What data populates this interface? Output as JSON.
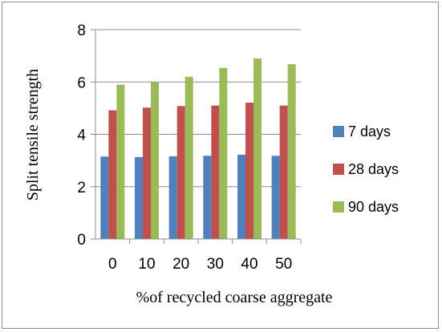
{
  "chart_data": {
    "type": "bar",
    "title": "",
    "xlabel": "%of recycled coarse aggregate",
    "ylabel": "Split tensile strength",
    "categories": [
      "0",
      "10",
      "20",
      "30",
      "40",
      "50"
    ],
    "ylim": [
      0,
      8
    ],
    "yticks": [
      "0",
      "2",
      "4",
      "6",
      "8"
    ],
    "grid": true,
    "legend_position": "right",
    "series": [
      {
        "name": "7 days",
        "color": "#4f81bd",
        "values": [
          3.15,
          3.13,
          3.16,
          3.18,
          3.22,
          3.18
        ]
      },
      {
        "name": "28 days",
        "color": "#c0504d",
        "values": [
          4.92,
          5.02,
          5.08,
          5.1,
          5.21,
          5.1
        ]
      },
      {
        "name": "90 days",
        "color": "#9bbb59",
        "values": [
          5.9,
          5.99,
          6.2,
          6.54,
          6.9,
          6.68
        ]
      }
    ]
  }
}
